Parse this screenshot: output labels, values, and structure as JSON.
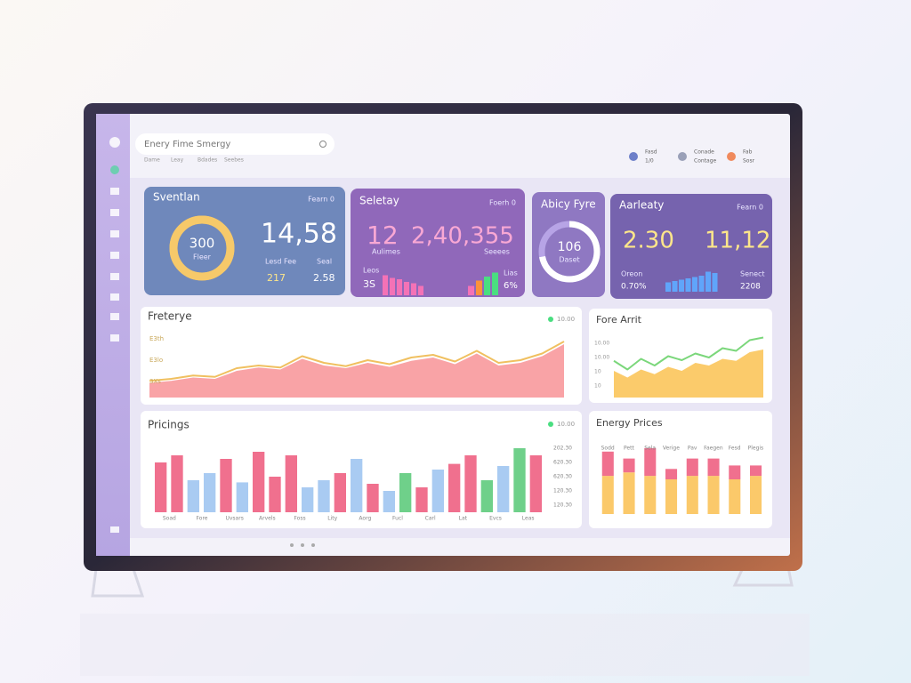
{
  "header": {
    "search": "Enery Fime Smergy",
    "breadcrumbs": [
      "Dame",
      "Leay",
      "Bdades",
      "Seebes"
    ],
    "actions": [
      {
        "label": "Fasd",
        "sub": "1/0"
      },
      {
        "label": "Conade",
        "sub": "Contage"
      },
      {
        "label": "Fab",
        "sub": "Sosr"
      }
    ]
  },
  "cards": [
    {
      "title": "Sventlan",
      "badge": "Fearn 0",
      "ring_value": "300",
      "ring_label": "Fleer",
      "ring_percent": 100,
      "big": "14,58",
      "stat1_label": "Lesd Fee",
      "stat1": "217",
      "stat2_label": "Seal",
      "stat2": "2.58"
    },
    {
      "title": "Seletay",
      "badge": "Foerh 0",
      "left": "12",
      "left_label": "Aulimes",
      "big": "2,40,355",
      "big_label": "Seeees",
      "stat1_label": "Leos",
      "stat1": "3S",
      "stat2_label": "Lias",
      "stat2": "6%",
      "bars_left": [
        30,
        26,
        24,
        20,
        18,
        14
      ],
      "bars_right": [
        {
          "value": 14,
          "color": "#f472b6"
        },
        {
          "value": 22,
          "color": "#fb923c"
        },
        {
          "value": 28,
          "color": "#4ade80"
        },
        {
          "value": 34,
          "color": "#4ade80"
        }
      ]
    },
    {
      "title": "Abicy Fyre",
      "ring_value": "106",
      "ring_label": "Daset",
      "ring_percent": 72
    },
    {
      "title": "Aarleaty",
      "badge": "Fearn 0",
      "left": "2.30",
      "big": "11,12",
      "stat1_label": "Oreon",
      "stat1": "0.70%",
      "stat2_label": "Senect",
      "stat2": "2208",
      "bars": [
        14,
        16,
        18,
        20,
        22,
        24,
        30,
        28
      ]
    }
  ],
  "area_chart": {
    "title": "Freterye",
    "legend": "10.00",
    "labels": [
      "E3th",
      "E3lo",
      "3Xs"
    ],
    "values": [
      22,
      25,
      30,
      28,
      40,
      45,
      42,
      58,
      48,
      44,
      52,
      46,
      55,
      60,
      50,
      66,
      48,
      52,
      62,
      80
    ],
    "line": [
      25,
      28,
      33,
      31,
      44,
      48,
      45,
      62,
      52,
      47,
      56,
      50,
      60,
      64,
      54,
      70,
      52,
      56,
      66,
      84
    ]
  },
  "area_chart2": {
    "title": "Fore Arrit",
    "labels": [
      "10.00",
      "10.00",
      "10",
      "10"
    ],
    "values": [
      40,
      30,
      42,
      35,
      46,
      40,
      52,
      48,
      58,
      55,
      68,
      72
    ],
    "line": [
      55,
      42,
      58,
      48,
      62,
      56,
      66,
      60,
      74,
      70,
      86,
      90
    ]
  },
  "bar_chart": {
    "title": "Pricings",
    "legend": "10.00",
    "labels": [
      "202.30",
      "620.30",
      "620.30",
      "120.30",
      "120.30"
    ],
    "categories": [
      "Soad",
      "Fore",
      "Uvsars",
      "Arvels",
      "Foss",
      "Lity",
      "Aorg",
      "Fucl",
      "Carl",
      "Lat",
      "Evcs",
      "Leas"
    ],
    "bars": [
      {
        "value": 70,
        "color": "#f0708e"
      },
      {
        "value": 80,
        "color": "#f0708e"
      },
      {
        "value": 45,
        "color": "#a9cbf2"
      },
      {
        "value": 55,
        "color": "#a9cbf2"
      },
      {
        "value": 75,
        "color": "#f0708e"
      },
      {
        "value": 42,
        "color": "#a9cbf2"
      },
      {
        "value": 85,
        "color": "#f0708e"
      },
      {
        "value": 50,
        "color": "#f0708e"
      },
      {
        "value": 80,
        "color": "#f0708e"
      },
      {
        "value": 35,
        "color": "#a9cbf2"
      },
      {
        "value": 45,
        "color": "#a9cbf2"
      },
      {
        "value": 55,
        "color": "#f0708e"
      },
      {
        "value": 75,
        "color": "#a9cbf2"
      },
      {
        "value": 40,
        "color": "#f0708e"
      },
      {
        "value": 30,
        "color": "#a9cbf2"
      },
      {
        "value": 55,
        "color": "#6fd08a"
      },
      {
        "value": 35,
        "color": "#f0708e"
      },
      {
        "value": 60,
        "color": "#a9cbf2"
      },
      {
        "value": 68,
        "color": "#f0708e"
      },
      {
        "value": 80,
        "color": "#f0708e"
      },
      {
        "value": 45,
        "color": "#6fd08a"
      },
      {
        "value": 65,
        "color": "#a9cbf2"
      },
      {
        "value": 90,
        "color": "#6fd08a"
      },
      {
        "value": 80,
        "color": "#f0708e"
      }
    ]
  },
  "stacked_chart": {
    "title": "Energy Prices",
    "categories": [
      "Sodd",
      "Pett",
      "Sela",
      "Verige",
      "Pav",
      "Faegen",
      "Fesd",
      "Plegis"
    ],
    "bottom": [
      55,
      60,
      55,
      50,
      55,
      55,
      50,
      55
    ],
    "top": [
      35,
      20,
      40,
      15,
      25,
      25,
      20,
      15
    ],
    "bottom_color": "#fbc96a",
    "top_color": "#f0708e"
  }
}
